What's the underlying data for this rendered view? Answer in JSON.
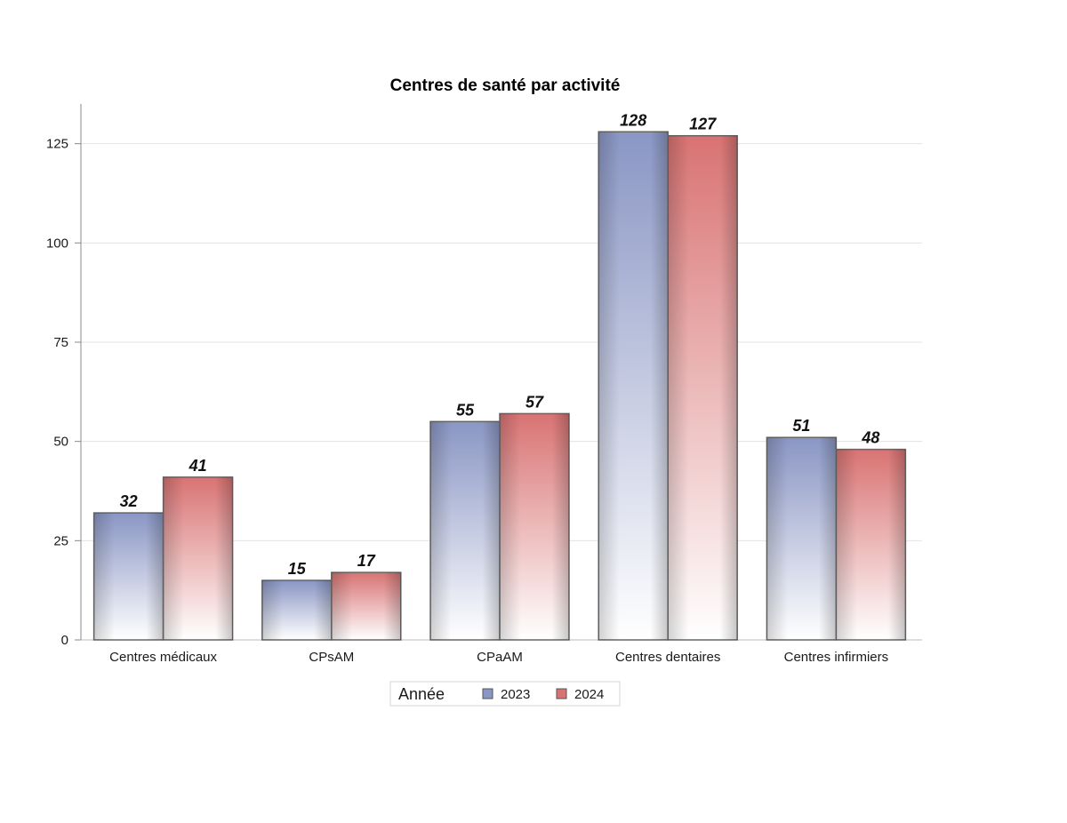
{
  "chart_data": {
    "type": "bar",
    "title": "Centres de santé par activité",
    "xlabel": "",
    "ylabel": "",
    "ylim": [
      0,
      135
    ],
    "yticks": [
      0,
      25,
      50,
      75,
      100,
      125
    ],
    "grid": true,
    "categories": [
      "Centres médicaux",
      "CPsAM",
      "CPaAM",
      "Centres dentaires",
      "Centres infirmiers"
    ],
    "series": [
      {
        "name": "2023",
        "values": [
          32,
          15,
          55,
          128,
          51
        ],
        "color": "#8a96c4"
      },
      {
        "name": "2024",
        "values": [
          41,
          17,
          57,
          127,
          48
        ],
        "color": "#d97373"
      }
    ],
    "legend": {
      "title": "Année",
      "position": "bottom-center"
    }
  }
}
